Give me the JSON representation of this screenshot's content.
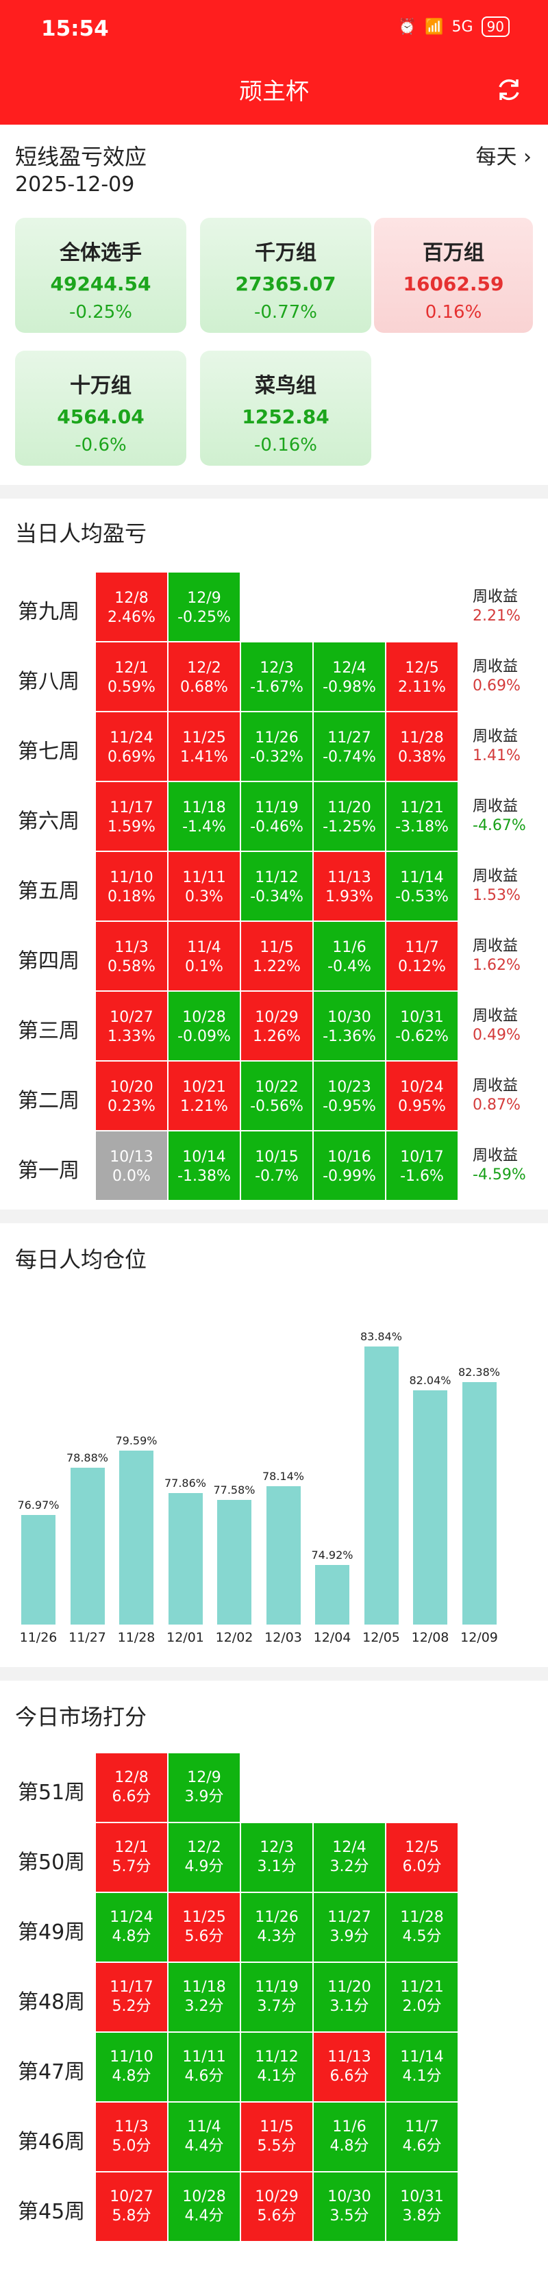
{
  "status": {
    "time": "15:54",
    "network": "5G",
    "battery": "90"
  },
  "header": {
    "title": "顽主杯"
  },
  "short_term": {
    "title": "短线盈亏效应",
    "date": "2025-12-09",
    "period_label": "每天",
    "cards": [
      {
        "name": "全体选手",
        "value": "49244.54",
        "pct": "-0.25%",
        "tone": "green"
      },
      {
        "name": "千万组",
        "value": "27365.07",
        "pct": "-0.77%",
        "tone": "green"
      },
      {
        "name": "百万组",
        "value": "16062.59",
        "pct": "0.16%",
        "tone": "red"
      },
      {
        "name": "十万组",
        "value": "4564.04",
        "pct": "-0.6%",
        "tone": "green"
      },
      {
        "name": "菜鸟组",
        "value": "1252.84",
        "pct": "-0.16%",
        "tone": "green"
      }
    ]
  },
  "daily_pnl": {
    "title": "当日人均盈亏",
    "summary_label": "周收益",
    "weeks": [
      {
        "label": "第九周",
        "summary": "2.21%",
        "cells": [
          {
            "date": "12/8",
            "value": "2.46%",
            "tone": "r"
          },
          {
            "date": "12/9",
            "value": "-0.25%",
            "tone": "g"
          }
        ]
      },
      {
        "label": "第八周",
        "summary": "0.69%",
        "cells": [
          {
            "date": "12/1",
            "value": "0.59%",
            "tone": "r"
          },
          {
            "date": "12/2",
            "value": "0.68%",
            "tone": "r"
          },
          {
            "date": "12/3",
            "value": "-1.67%",
            "tone": "g"
          },
          {
            "date": "12/4",
            "value": "-0.98%",
            "tone": "g"
          },
          {
            "date": "12/5",
            "value": "2.11%",
            "tone": "r"
          }
        ]
      },
      {
        "label": "第七周",
        "summary": "1.41%",
        "cells": [
          {
            "date": "11/24",
            "value": "0.69%",
            "tone": "r"
          },
          {
            "date": "11/25",
            "value": "1.41%",
            "tone": "r"
          },
          {
            "date": "11/26",
            "value": "-0.32%",
            "tone": "g"
          },
          {
            "date": "11/27",
            "value": "-0.74%",
            "tone": "g"
          },
          {
            "date": "11/28",
            "value": "0.38%",
            "tone": "r"
          }
        ]
      },
      {
        "label": "第六周",
        "summary": "-4.67%",
        "cells": [
          {
            "date": "11/17",
            "value": "1.59%",
            "tone": "r"
          },
          {
            "date": "11/18",
            "value": "-1.4%",
            "tone": "g"
          },
          {
            "date": "11/19",
            "value": "-0.46%",
            "tone": "g"
          },
          {
            "date": "11/20",
            "value": "-1.25%",
            "tone": "g"
          },
          {
            "date": "11/21",
            "value": "-3.18%",
            "tone": "g"
          }
        ]
      },
      {
        "label": "第五周",
        "summary": "1.53%",
        "cells": [
          {
            "date": "11/10",
            "value": "0.18%",
            "tone": "r"
          },
          {
            "date": "11/11",
            "value": "0.3%",
            "tone": "r"
          },
          {
            "date": "11/12",
            "value": "-0.34%",
            "tone": "g"
          },
          {
            "date": "11/13",
            "value": "1.93%",
            "tone": "r"
          },
          {
            "date": "11/14",
            "value": "-0.53%",
            "tone": "g"
          }
        ]
      },
      {
        "label": "第四周",
        "summary": "1.62%",
        "cells": [
          {
            "date": "11/3",
            "value": "0.58%",
            "tone": "r"
          },
          {
            "date": "11/4",
            "value": "0.1%",
            "tone": "r"
          },
          {
            "date": "11/5",
            "value": "1.22%",
            "tone": "r"
          },
          {
            "date": "11/6",
            "value": "-0.4%",
            "tone": "g"
          },
          {
            "date": "11/7",
            "value": "0.12%",
            "tone": "r"
          }
        ]
      },
      {
        "label": "第三周",
        "summary": "0.49%",
        "cells": [
          {
            "date": "10/27",
            "value": "1.33%",
            "tone": "r"
          },
          {
            "date": "10/28",
            "value": "-0.09%",
            "tone": "g"
          },
          {
            "date": "10/29",
            "value": "1.26%",
            "tone": "r"
          },
          {
            "date": "10/30",
            "value": "-1.36%",
            "tone": "g"
          },
          {
            "date": "10/31",
            "value": "-0.62%",
            "tone": "g"
          }
        ]
      },
      {
        "label": "第二周",
        "summary": "0.87%",
        "cells": [
          {
            "date": "10/20",
            "value": "0.23%",
            "tone": "r"
          },
          {
            "date": "10/21",
            "value": "1.21%",
            "tone": "r"
          },
          {
            "date": "10/22",
            "value": "-0.56%",
            "tone": "g"
          },
          {
            "date": "10/23",
            "value": "-0.95%",
            "tone": "g"
          },
          {
            "date": "10/24",
            "value": "0.95%",
            "tone": "r"
          }
        ]
      },
      {
        "label": "第一周",
        "summary": "-4.59%",
        "cells": [
          {
            "date": "10/13",
            "value": "0.0%",
            "tone": "z"
          },
          {
            "date": "10/14",
            "value": "-1.38%",
            "tone": "g"
          },
          {
            "date": "10/15",
            "value": "-0.7%",
            "tone": "g"
          },
          {
            "date": "10/16",
            "value": "-0.99%",
            "tone": "g"
          },
          {
            "date": "10/17",
            "value": "-1.6%",
            "tone": "g"
          }
        ]
      }
    ]
  },
  "position_chart": {
    "title": "每日人均仓位",
    "chart_data": {
      "type": "bar",
      "categories": [
        "11/26",
        "11/27",
        "11/28",
        "12/01",
        "12/02",
        "12/03",
        "12/04",
        "12/05",
        "12/08",
        "12/09"
      ],
      "values": [
        76.97,
        78.88,
        79.59,
        77.86,
        77.58,
        78.14,
        74.92,
        83.84,
        82.04,
        82.38
      ],
      "labels": [
        "76.97%",
        "78.88%",
        "79.59%",
        "77.86%",
        "77.58%",
        "78.14%",
        "74.92%",
        "83.84%",
        "82.04%",
        "82.38%"
      ],
      "color": "#86d7d0"
    }
  },
  "market_score": {
    "title": "今日市场打分",
    "weeks": [
      {
        "label": "第51周",
        "cells": [
          {
            "date": "12/8",
            "value": "6.6分",
            "tone": "r"
          },
          {
            "date": "12/9",
            "value": "3.9分",
            "tone": "g"
          }
        ]
      },
      {
        "label": "第50周",
        "cells": [
          {
            "date": "12/1",
            "value": "5.7分",
            "tone": "r"
          },
          {
            "date": "12/2",
            "value": "4.9分",
            "tone": "g"
          },
          {
            "date": "12/3",
            "value": "3.1分",
            "tone": "g"
          },
          {
            "date": "12/4",
            "value": "3.2分",
            "tone": "g"
          },
          {
            "date": "12/5",
            "value": "6.0分",
            "tone": "r"
          }
        ]
      },
      {
        "label": "第49周",
        "cells": [
          {
            "date": "11/24",
            "value": "4.8分",
            "tone": "g"
          },
          {
            "date": "11/25",
            "value": "5.6分",
            "tone": "r"
          },
          {
            "date": "11/26",
            "value": "4.3分",
            "tone": "g"
          },
          {
            "date": "11/27",
            "value": "3.9分",
            "tone": "g"
          },
          {
            "date": "11/28",
            "value": "4.5分",
            "tone": "g"
          }
        ]
      },
      {
        "label": "第48周",
        "cells": [
          {
            "date": "11/17",
            "value": "5.2分",
            "tone": "r"
          },
          {
            "date": "11/18",
            "value": "3.2分",
            "tone": "g"
          },
          {
            "date": "11/19",
            "value": "3.7分",
            "tone": "g"
          },
          {
            "date": "11/20",
            "value": "3.1分",
            "tone": "g"
          },
          {
            "date": "11/21",
            "value": "2.0分",
            "tone": "g"
          }
        ]
      },
      {
        "label": "第47周",
        "cells": [
          {
            "date": "11/10",
            "value": "4.8分",
            "tone": "g"
          },
          {
            "date": "11/11",
            "value": "4.6分",
            "tone": "g"
          },
          {
            "date": "11/12",
            "value": "4.1分",
            "tone": "g"
          },
          {
            "date": "11/13",
            "value": "6.6分",
            "tone": "r"
          },
          {
            "date": "11/14",
            "value": "4.1分",
            "tone": "g"
          }
        ]
      },
      {
        "label": "第46周",
        "cells": [
          {
            "date": "11/3",
            "value": "5.0分",
            "tone": "r"
          },
          {
            "date": "11/4",
            "value": "4.4分",
            "tone": "g"
          },
          {
            "date": "11/5",
            "value": "5.5分",
            "tone": "r"
          },
          {
            "date": "11/6",
            "value": "4.8分",
            "tone": "g"
          },
          {
            "date": "11/7",
            "value": "4.6分",
            "tone": "g"
          }
        ]
      },
      {
        "label": "第45周",
        "cells": [
          {
            "date": "10/27",
            "value": "5.8分",
            "tone": "r"
          },
          {
            "date": "10/28",
            "value": "4.4分",
            "tone": "g"
          },
          {
            "date": "10/29",
            "value": "5.6分",
            "tone": "r"
          },
          {
            "date": "10/30",
            "value": "3.5分",
            "tone": "g"
          },
          {
            "date": "10/31",
            "value": "3.8分",
            "tone": "g"
          }
        ]
      }
    ]
  }
}
